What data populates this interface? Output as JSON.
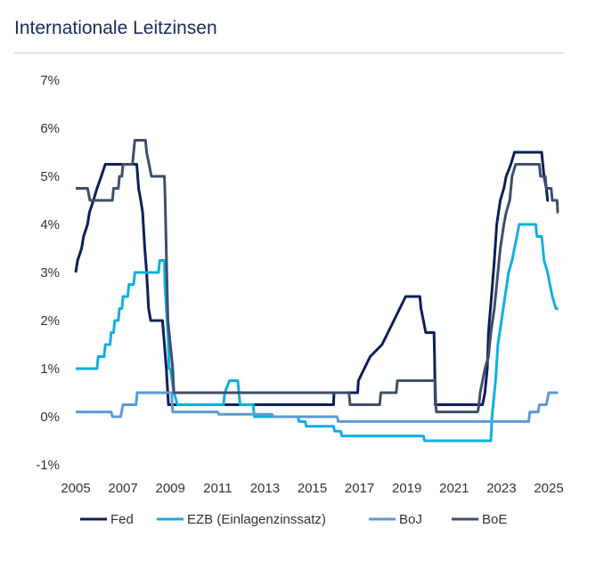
{
  "chart_data": {
    "type": "line",
    "title": "Internationale Leitzinsen",
    "xlabel": "",
    "ylabel": "",
    "xlim": [
      2005,
      2025
    ],
    "ylim": [
      -1,
      7
    ],
    "x_ticks": [
      2005,
      2007,
      2009,
      2011,
      2013,
      2015,
      2017,
      2019,
      2021,
      2023,
      2025
    ],
    "x_tick_labels": [
      "2005",
      "2007",
      "2009",
      "2011",
      "2013",
      "2015",
      "2017",
      "2019",
      "2021",
      "2023",
      "2025"
    ],
    "y_ticks": [
      -1,
      0,
      1,
      2,
      3,
      4,
      5,
      6,
      7
    ],
    "y_tick_labels": [
      "-1%",
      "0%",
      "1%",
      "2%",
      "3%",
      "4%",
      "5%",
      "6%",
      "7%"
    ],
    "legend_position": "bottom",
    "series": [
      {
        "name": "Fed",
        "color": "#0c1f5b",
        "points": [
          [
            2005.0,
            3.0
          ],
          [
            2005.08,
            3.25
          ],
          [
            2005.25,
            3.5
          ],
          [
            2005.33,
            3.75
          ],
          [
            2005.5,
            4.0
          ],
          [
            2005.58,
            4.25
          ],
          [
            2005.75,
            4.5
          ],
          [
            2005.9,
            4.75
          ],
          [
            2006.08,
            5.0
          ],
          [
            2006.25,
            5.25
          ],
          [
            2007.58,
            5.25
          ],
          [
            2007.66,
            4.75
          ],
          [
            2007.75,
            4.5
          ],
          [
            2007.83,
            4.25
          ],
          [
            2007.92,
            3.5
          ],
          [
            2008.0,
            3.0
          ],
          [
            2008.08,
            2.25
          ],
          [
            2008.17,
            2.0
          ],
          [
            2008.67,
            2.0
          ],
          [
            2008.75,
            1.5
          ],
          [
            2008.83,
            1.0
          ],
          [
            2008.92,
            0.25
          ],
          [
            2015.9,
            0.25
          ],
          [
            2015.92,
            0.5
          ],
          [
            2016.92,
            0.5
          ],
          [
            2016.95,
            0.75
          ],
          [
            2017.2,
            1.0
          ],
          [
            2017.45,
            1.25
          ],
          [
            2017.95,
            1.5
          ],
          [
            2018.2,
            1.75
          ],
          [
            2018.45,
            2.0
          ],
          [
            2018.7,
            2.25
          ],
          [
            2018.95,
            2.5
          ],
          [
            2019.55,
            2.5
          ],
          [
            2019.6,
            2.25
          ],
          [
            2019.7,
            2.0
          ],
          [
            2019.8,
            1.75
          ],
          [
            2020.15,
            1.75
          ],
          [
            2020.17,
            1.25
          ],
          [
            2020.2,
            0.25
          ],
          [
            2022.2,
            0.25
          ],
          [
            2022.3,
            0.5
          ],
          [
            2022.4,
            1.0
          ],
          [
            2022.45,
            1.75
          ],
          [
            2022.58,
            2.5
          ],
          [
            2022.7,
            3.25
          ],
          [
            2022.8,
            4.0
          ],
          [
            2022.95,
            4.5
          ],
          [
            2023.1,
            4.75
          ],
          [
            2023.2,
            5.0
          ],
          [
            2023.4,
            5.25
          ],
          [
            2023.55,
            5.5
          ],
          [
            2024.7,
            5.5
          ],
          [
            2024.8,
            5.0
          ],
          [
            2024.9,
            4.75
          ],
          [
            2024.95,
            4.5
          ],
          [
            2025.0,
            4.5
          ]
        ]
      },
      {
        "name": "EZB (Einlagenzinssatz)",
        "color": "#10aee3",
        "points": [
          [
            2005.0,
            1.0
          ],
          [
            2005.9,
            1.0
          ],
          [
            2005.95,
            1.25
          ],
          [
            2006.2,
            1.25
          ],
          [
            2006.25,
            1.5
          ],
          [
            2006.45,
            1.5
          ],
          [
            2006.5,
            1.75
          ],
          [
            2006.6,
            1.75
          ],
          [
            2006.65,
            2.0
          ],
          [
            2006.8,
            2.0
          ],
          [
            2006.85,
            2.25
          ],
          [
            2006.95,
            2.25
          ],
          [
            2007.0,
            2.5
          ],
          [
            2007.2,
            2.5
          ],
          [
            2007.25,
            2.75
          ],
          [
            2007.45,
            2.75
          ],
          [
            2007.5,
            3.0
          ],
          [
            2008.5,
            3.0
          ],
          [
            2008.55,
            3.25
          ],
          [
            2008.75,
            3.25
          ],
          [
            2008.77,
            2.75
          ],
          [
            2008.83,
            2.25
          ],
          [
            2008.9,
            1.75
          ],
          [
            2008.95,
            1.0
          ],
          [
            2009.0,
            1.0
          ],
          [
            2009.15,
            0.5
          ],
          [
            2009.3,
            0.25
          ],
          [
            2011.25,
            0.25
          ],
          [
            2011.3,
            0.5
          ],
          [
            2011.5,
            0.75
          ],
          [
            2011.85,
            0.75
          ],
          [
            2011.9,
            0.5
          ],
          [
            2011.95,
            0.25
          ],
          [
            2012.5,
            0.25
          ],
          [
            2012.55,
            0.0
          ],
          [
            2014.4,
            0.0
          ],
          [
            2014.45,
            -0.1
          ],
          [
            2014.7,
            -0.1
          ],
          [
            2014.75,
            -0.2
          ],
          [
            2015.9,
            -0.2
          ],
          [
            2015.95,
            -0.3
          ],
          [
            2016.2,
            -0.3
          ],
          [
            2016.25,
            -0.4
          ],
          [
            2019.7,
            -0.4
          ],
          [
            2019.75,
            -0.5
          ],
          [
            2022.55,
            -0.5
          ],
          [
            2022.6,
            0.0
          ],
          [
            2022.75,
            0.75
          ],
          [
            2022.85,
            1.5
          ],
          [
            2023.0,
            2.0
          ],
          [
            2023.15,
            2.5
          ],
          [
            2023.3,
            3.0
          ],
          [
            2023.45,
            3.25
          ],
          [
            2023.55,
            3.5
          ],
          [
            2023.65,
            3.75
          ],
          [
            2023.75,
            4.0
          ],
          [
            2024.45,
            4.0
          ],
          [
            2024.5,
            3.75
          ],
          [
            2024.7,
            3.75
          ],
          [
            2024.75,
            3.5
          ],
          [
            2024.8,
            3.25
          ],
          [
            2024.95,
            3.0
          ],
          [
            2025.05,
            2.75
          ],
          [
            2025.15,
            2.5
          ],
          [
            2025.3,
            2.25
          ],
          [
            2025.4,
            2.25
          ]
        ]
      },
      {
        "name": "BoJ",
        "color": "#5b9bd5",
        "points": [
          [
            2005.0,
            0.1
          ],
          [
            2006.5,
            0.1
          ],
          [
            2006.55,
            0.0
          ],
          [
            2006.9,
            0.0
          ],
          [
            2007.0,
            0.25
          ],
          [
            2007.55,
            0.25
          ],
          [
            2007.6,
            0.5
          ],
          [
            2009.05,
            0.5
          ],
          [
            2009.1,
            0.1
          ],
          [
            2011.0,
            0.1
          ],
          [
            2011.05,
            0.05
          ],
          [
            2013.3,
            0.05
          ],
          [
            2013.35,
            0.0
          ],
          [
            2016.05,
            0.0
          ],
          [
            2016.1,
            -0.1
          ],
          [
            2024.15,
            -0.1
          ],
          [
            2024.2,
            0.1
          ],
          [
            2024.55,
            0.1
          ],
          [
            2024.6,
            0.25
          ],
          [
            2024.9,
            0.25
          ],
          [
            2025.0,
            0.5
          ],
          [
            2025.4,
            0.5
          ]
        ]
      },
      {
        "name": "BoE",
        "color": "#3f4f6b",
        "points": [
          [
            2005.0,
            4.75
          ],
          [
            2005.5,
            4.75
          ],
          [
            2005.6,
            4.5
          ],
          [
            2006.55,
            4.5
          ],
          [
            2006.6,
            4.75
          ],
          [
            2006.8,
            4.75
          ],
          [
            2006.85,
            5.0
          ],
          [
            2006.95,
            5.0
          ],
          [
            2007.0,
            5.25
          ],
          [
            2007.4,
            5.25
          ],
          [
            2007.45,
            5.5
          ],
          [
            2007.5,
            5.75
          ],
          [
            2007.95,
            5.75
          ],
          [
            2008.0,
            5.5
          ],
          [
            2008.1,
            5.25
          ],
          [
            2008.2,
            5.0
          ],
          [
            2008.75,
            5.0
          ],
          [
            2008.78,
            4.5
          ],
          [
            2008.85,
            3.0
          ],
          [
            2008.9,
            2.0
          ],
          [
            2009.0,
            1.5
          ],
          [
            2009.1,
            1.0
          ],
          [
            2009.15,
            0.5
          ],
          [
            2016.55,
            0.5
          ],
          [
            2016.6,
            0.25
          ],
          [
            2017.85,
            0.25
          ],
          [
            2017.9,
            0.5
          ],
          [
            2018.55,
            0.5
          ],
          [
            2018.6,
            0.75
          ],
          [
            2020.2,
            0.75
          ],
          [
            2020.22,
            0.25
          ],
          [
            2020.25,
            0.1
          ],
          [
            2022.0,
            0.1
          ],
          [
            2022.05,
            0.25
          ],
          [
            2022.1,
            0.5
          ],
          [
            2022.2,
            0.75
          ],
          [
            2022.3,
            1.0
          ],
          [
            2022.45,
            1.25
          ],
          [
            2022.55,
            1.75
          ],
          [
            2022.7,
            2.25
          ],
          [
            2022.85,
            3.0
          ],
          [
            2022.95,
            3.5
          ],
          [
            2023.1,
            4.0
          ],
          [
            2023.2,
            4.25
          ],
          [
            2023.35,
            4.5
          ],
          [
            2023.45,
            5.0
          ],
          [
            2023.6,
            5.25
          ],
          [
            2024.6,
            5.25
          ],
          [
            2024.65,
            5.0
          ],
          [
            2024.85,
            5.0
          ],
          [
            2024.9,
            4.75
          ],
          [
            2025.1,
            4.75
          ],
          [
            2025.15,
            4.5
          ],
          [
            2025.35,
            4.5
          ],
          [
            2025.38,
            4.25
          ],
          [
            2025.4,
            4.25
          ]
        ]
      }
    ]
  }
}
